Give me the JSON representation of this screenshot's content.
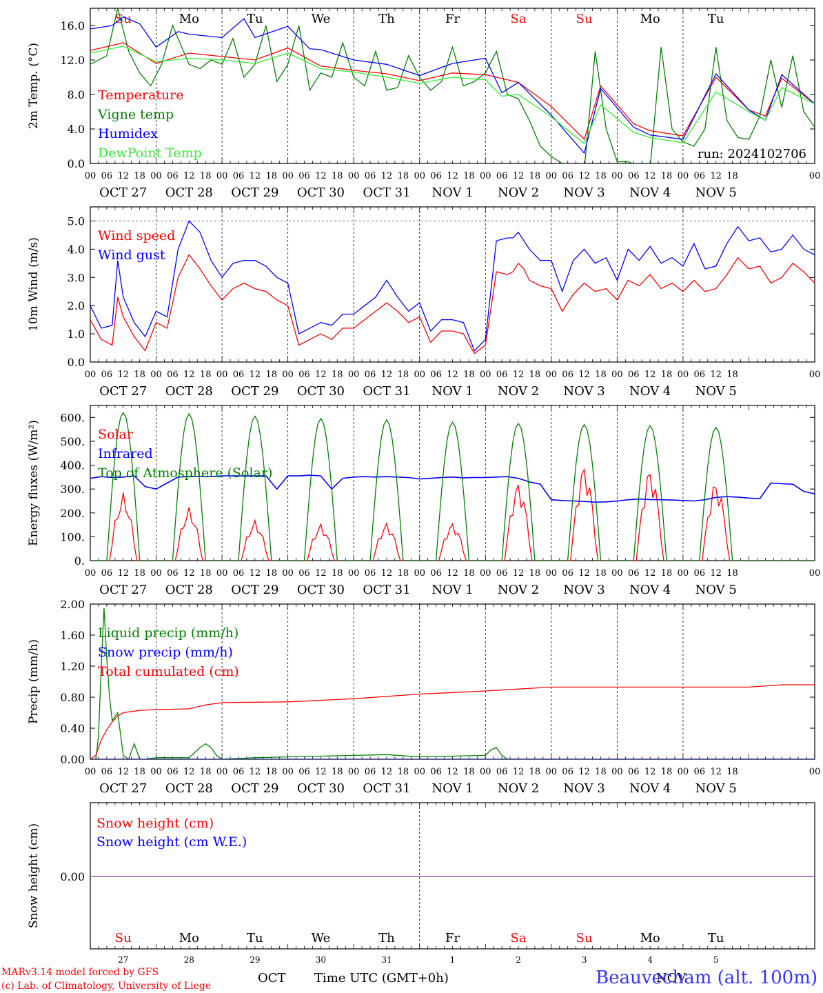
{
  "days": {
    "top": [
      "Su",
      "Mo",
      "Tu",
      "We",
      "Th",
      "Fr",
      "Sa",
      "Su",
      "Mo",
      "Tu"
    ],
    "top_colors": [
      "#ff0000",
      "#000000",
      "#000000",
      "#000000",
      "#000000",
      "#000000",
      "#ff0000",
      "#ff0000",
      "#000000",
      "#000000"
    ],
    "dates": [
      "OCT 27",
      "OCT 28",
      "OCT 29",
      "OCT 30",
      "OCT 31",
      "NOV  1",
      "NOV  2",
      "NOV  3",
      "NOV  4",
      "NOV  5"
    ],
    "hour_ticks": [
      "00",
      "06",
      "12",
      "18"
    ],
    "day_numbers": [
      "27",
      "28",
      "29",
      "30",
      "31",
      "1",
      "2",
      "3",
      "4",
      "5"
    ]
  },
  "footer": {
    "credit1": "MARv3.14 model forced by GFS",
    "credit2": "(c) Lab. of Climatology, University of Liege",
    "month1": "OCT",
    "time_label": "Time UTC (GMT+0h)",
    "month2": "NOV",
    "station": "Beauvecham (alt. 100m)"
  },
  "colors": {
    "red": "#ff0000",
    "green": "#008000",
    "blue": "#0000ff",
    "light_green": "#33ee33",
    "purple": "#7b3ca8"
  },
  "chart_data": [
    {
      "type": "line",
      "ylabel": "2m Temp. (°C)",
      "ylim": [
        0,
        18
      ],
      "yticks": [
        "0.0",
        "4.0",
        "8.0",
        "12.0",
        "16.0"
      ],
      "annotation": "run: 2024102706",
      "x_unit": "hours since 2024-10-27 00 UTC",
      "series": [
        {
          "name": "Temperature",
          "color": "#ff0000",
          "x": [
            0,
            12,
            24,
            36,
            48,
            60,
            72,
            84,
            96,
            108,
            120,
            132,
            144,
            156,
            168,
            180,
            186,
            198,
            204,
            216,
            228,
            240,
            246,
            252,
            264
          ],
          "y": [
            13.1,
            14.0,
            11.6,
            12.8,
            12.4,
            12.0,
            13.4,
            11.3,
            10.8,
            10.4,
            9.6,
            10.5,
            10.3,
            9.4,
            6.6,
            2.8,
            9.0,
            4.6,
            3.8,
            3.2,
            10.0,
            6.2,
            5.5,
            9.9,
            6.9
          ]
        },
        {
          "name": "Vigne temp",
          "color": "#008000",
          "x": [
            0,
            6,
            10,
            14,
            18,
            22,
            26,
            30,
            36,
            40,
            44,
            48,
            52,
            56,
            60,
            64,
            68,
            72,
            76,
            80,
            84,
            88,
            92,
            96,
            100,
            104,
            108,
            112,
            116,
            120,
            124,
            128,
            132,
            136,
            140,
            144,
            148,
            152,
            156,
            160,
            164,
            168,
            172,
            176,
            180,
            184,
            188,
            192,
            196,
            200,
            204,
            208,
            212,
            216,
            220,
            224,
            228,
            232,
            236,
            240,
            244,
            248,
            252,
            256,
            260,
            264
          ],
          "y": [
            11.5,
            12.5,
            18.0,
            13.0,
            10.5,
            9.0,
            11.5,
            16.0,
            11.5,
            11.0,
            12.0,
            11.5,
            14.5,
            10.0,
            11.5,
            16.0,
            9.5,
            11.5,
            16.0,
            8.5,
            10.5,
            10.0,
            14.0,
            10.0,
            9.0,
            13.0,
            8.5,
            8.8,
            12.5,
            10.0,
            8.5,
            9.5,
            13.5,
            9.0,
            9.5,
            10.5,
            13.0,
            8.0,
            7.5,
            5.0,
            2.0,
            0.8,
            0.0,
            -0.5,
            -0.8,
            13.0,
            4.0,
            0.2,
            0.2,
            -0.3,
            -0.6,
            13.5,
            4.0,
            2.5,
            2.0,
            4.0,
            13.5,
            5.0,
            3.0,
            2.8,
            5.5,
            12.0,
            6.5,
            12.5,
            6.0,
            4.2
          ]
        },
        {
          "name": "Humidex",
          "color": "#0000ff",
          "x": [
            0,
            8,
            12,
            18,
            24,
            32,
            36,
            48,
            56,
            60,
            72,
            80,
            84,
            96,
            108,
            120,
            132,
            144,
            150,
            156,
            168,
            180,
            186,
            198,
            204,
            216,
            228,
            240,
            246,
            252,
            264
          ],
          "y": [
            15.6,
            16.0,
            17.0,
            16.2,
            13.5,
            15.3,
            15.0,
            14.6,
            16.8,
            14.6,
            15.9,
            13.3,
            13.2,
            12.0,
            11.5,
            10.2,
            11.6,
            12.2,
            8.2,
            9.4,
            5.6,
            1.2,
            8.7,
            4.2,
            3.3,
            2.8,
            10.4,
            6.2,
            5.0,
            10.3,
            6.9
          ]
        },
        {
          "name": "DewPoint Temp",
          "color": "#33ee33",
          "x": [
            0,
            12,
            24,
            36,
            48,
            60,
            72,
            84,
            96,
            108,
            120,
            132,
            144,
            150,
            156,
            168,
            180,
            186,
            198,
            204,
            216,
            228,
            240,
            246,
            252,
            264
          ],
          "y": [
            12.8,
            13.6,
            11.8,
            12.2,
            12.0,
            11.6,
            12.8,
            11.0,
            10.6,
            10.0,
            9.3,
            10.0,
            9.7,
            7.8,
            8.0,
            5.4,
            2.3,
            6.8,
            3.6,
            3.0,
            2.4,
            8.3,
            6.0,
            5.0,
            8.8,
            6.9
          ]
        }
      ]
    },
    {
      "type": "line",
      "ylabel": "10m Wind (m/s)",
      "ylim": [
        0,
        5.5
      ],
      "yticks": [
        "0.0",
        "1.0",
        "2.0",
        "3.0",
        "4.0",
        "5.0"
      ],
      "series": [
        {
          "name": "Wind speed",
          "color": "#ff0000",
          "x": [
            0,
            4,
            8,
            10,
            12,
            16,
            20,
            24,
            28,
            32,
            36,
            40,
            44,
            48,
            52,
            56,
            60,
            64,
            68,
            72,
            76,
            80,
            84,
            88,
            92,
            96,
            100,
            104,
            108,
            112,
            116,
            120,
            124,
            128,
            132,
            136,
            140,
            144,
            148,
            152,
            154,
            156,
            158,
            160,
            164,
            168,
            172,
            176,
            180,
            184,
            188,
            192,
            196,
            200,
            204,
            208,
            212,
            216,
            220,
            224,
            228,
            232,
            236,
            240,
            244,
            248,
            252,
            256,
            260,
            264
          ],
          "y": [
            1.5,
            0.8,
            0.6,
            2.3,
            1.6,
            0.9,
            0.4,
            1.4,
            1.2,
            3.0,
            3.8,
            3.3,
            2.7,
            2.2,
            2.6,
            2.8,
            2.6,
            2.5,
            2.2,
            2.0,
            0.6,
            0.8,
            1.0,
            0.8,
            1.2,
            1.2,
            1.5,
            1.8,
            2.1,
            1.8,
            1.4,
            1.6,
            0.7,
            1.1,
            1.1,
            1.0,
            0.3,
            0.6,
            3.2,
            3.1,
            3.2,
            3.5,
            3.3,
            2.9,
            2.7,
            2.6,
            1.8,
            2.4,
            2.8,
            2.5,
            2.6,
            2.2,
            2.9,
            2.7,
            3.1,
            2.6,
            2.8,
            2.5,
            2.9,
            2.5,
            2.6,
            3.1,
            3.7,
            3.3,
            3.4,
            2.8,
            3.0,
            3.5,
            3.2,
            2.8
          ]
        },
        {
          "name": "Wind gust",
          "color": "#0000ff",
          "x": [
            0,
            4,
            8,
            10,
            12,
            16,
            20,
            24,
            28,
            32,
            36,
            40,
            44,
            48,
            52,
            56,
            60,
            64,
            68,
            72,
            76,
            80,
            84,
            88,
            92,
            96,
            100,
            104,
            108,
            112,
            116,
            120,
            124,
            128,
            132,
            136,
            140,
            144,
            148,
            152,
            154,
            156,
            158,
            160,
            164,
            168,
            172,
            176,
            180,
            184,
            188,
            192,
            196,
            200,
            204,
            208,
            212,
            216,
            220,
            224,
            228,
            232,
            236,
            240,
            244,
            248,
            252,
            256,
            260,
            264
          ],
          "y": [
            2.0,
            1.2,
            1.3,
            3.6,
            2.3,
            1.4,
            0.9,
            1.8,
            1.6,
            4.0,
            5.0,
            4.6,
            3.6,
            3.0,
            3.5,
            3.6,
            3.6,
            3.4,
            3.0,
            2.8,
            1.0,
            1.2,
            1.4,
            1.3,
            1.7,
            1.7,
            2.0,
            2.3,
            2.9,
            2.3,
            1.8,
            2.1,
            1.1,
            1.5,
            1.5,
            1.4,
            0.4,
            0.8,
            4.3,
            4.4,
            4.4,
            4.6,
            4.3,
            4.0,
            3.6,
            3.6,
            2.5,
            3.6,
            4.0,
            3.5,
            3.7,
            2.9,
            4.0,
            3.6,
            4.1,
            3.5,
            3.7,
            3.4,
            4.2,
            3.3,
            3.4,
            4.2,
            4.8,
            4.3,
            4.4,
            3.9,
            4.0,
            4.5,
            4.0,
            3.8
          ]
        }
      ]
    },
    {
      "type": "line",
      "ylabel": "Energy fluxes (W/m²)",
      "ylim": [
        0,
        650
      ],
      "yticks": [
        "0.",
        "100.",
        "200.",
        "300.",
        "400.",
        "500.",
        "600."
      ],
      "series": [
        {
          "name": "Solar",
          "color": "#ff0000",
          "noon_peaks": [
            285,
            225,
            170,
            155,
            160,
            160,
            335,
            410,
            395,
            340
          ]
        },
        {
          "name": "Infrared",
          "color": "#0000ff",
          "x": [
            0,
            4,
            8,
            12,
            16,
            20,
            24,
            28,
            32,
            36,
            40,
            44,
            48,
            52,
            56,
            60,
            64,
            68,
            72,
            76,
            80,
            84,
            88,
            92,
            96,
            100,
            104,
            108,
            112,
            116,
            120,
            124,
            128,
            132,
            136,
            140,
            144,
            148,
            152,
            156,
            160,
            164,
            168,
            172,
            176,
            180,
            184,
            188,
            192,
            196,
            200,
            204,
            208,
            212,
            216,
            220,
            224,
            228,
            232,
            236,
            240,
            244,
            248,
            252,
            256,
            260,
            264
          ],
          "y": [
            345,
            352,
            348,
            350,
            355,
            310,
            300,
            325,
            350,
            352,
            352,
            352,
            355,
            355,
            355,
            355,
            355,
            300,
            355,
            355,
            358,
            355,
            300,
            345,
            350,
            352,
            350,
            352,
            350,
            348,
            342,
            345,
            348,
            350,
            347,
            348,
            348,
            350,
            352,
            345,
            330,
            320,
            255,
            252,
            250,
            248,
            245,
            246,
            250,
            255,
            258,
            256,
            255,
            254,
            252,
            250,
            255,
            265,
            268,
            266,
            262,
            260,
            325,
            322,
            320,
            290,
            280
          ]
        },
        {
          "name": "Top of Atmosphere (Solar)",
          "color": "#008000",
          "noon_peaks": [
            620,
            615,
            605,
            595,
            590,
            580,
            575,
            570,
            565,
            558
          ]
        }
      ]
    },
    {
      "type": "line",
      "ylabel": "Precip (mm/h)",
      "ylim": [
        0,
        2.0
      ],
      "yticks": [
        "0.00",
        "0.40",
        "0.80",
        "1.20",
        "1.60",
        "2.00"
      ],
      "series": [
        {
          "name": "Liquid precip (mm/h)",
          "color": "#008000",
          "x": [
            0,
            2,
            3,
            4,
            5,
            6,
            7,
            8,
            9,
            10,
            12,
            14,
            16,
            18,
            20,
            24,
            36,
            40,
            42,
            44,
            46,
            48,
            60,
            72,
            84,
            96,
            108,
            120,
            144,
            146,
            148,
            150,
            152,
            264
          ],
          "y": [
            0,
            0,
            0.3,
            1.2,
            1.95,
            1.3,
            0.8,
            0.5,
            0.55,
            0.6,
            0.05,
            0.0,
            0.2,
            0.0,
            0.0,
            0.02,
            0.02,
            0.15,
            0.2,
            0.15,
            0.05,
            0.0,
            0.02,
            0.03,
            0.04,
            0.05,
            0.06,
            0.03,
            0.05,
            0.12,
            0.15,
            0.05,
            0.0,
            0.0
          ]
        },
        {
          "name": "Snow precip (mm/h)",
          "color": "#0000ff",
          "x": [
            0,
            264
          ],
          "y": [
            0,
            0
          ]
        },
        {
          "name": "Total cumulated (cm)",
          "color": "#ff0000",
          "x": [
            0,
            2,
            4,
            6,
            8,
            10,
            12,
            14,
            16,
            18,
            24,
            36,
            42,
            48,
            72,
            96,
            108,
            120,
            132,
            144,
            168,
            192,
            216,
            240,
            252,
            264
          ],
          "y": [
            0,
            0.05,
            0.25,
            0.38,
            0.48,
            0.56,
            0.6,
            0.61,
            0.62,
            0.63,
            0.64,
            0.65,
            0.7,
            0.73,
            0.74,
            0.78,
            0.81,
            0.84,
            0.86,
            0.88,
            0.93,
            0.93,
            0.93,
            0.93,
            0.96,
            0.96
          ]
        }
      ]
    },
    {
      "type": "line",
      "ylabel": "Snow height (cm)",
      "yticks": [
        "0.00"
      ],
      "series": [
        {
          "name": "Snow height (cm)",
          "color": "#ff0000",
          "x": [
            0,
            264
          ],
          "y": [
            0,
            0
          ]
        },
        {
          "name": "Snow height (cm W.E.)",
          "color": "#0000ff",
          "x": [
            0,
            264
          ],
          "y": [
            0,
            0
          ]
        }
      ]
    }
  ]
}
